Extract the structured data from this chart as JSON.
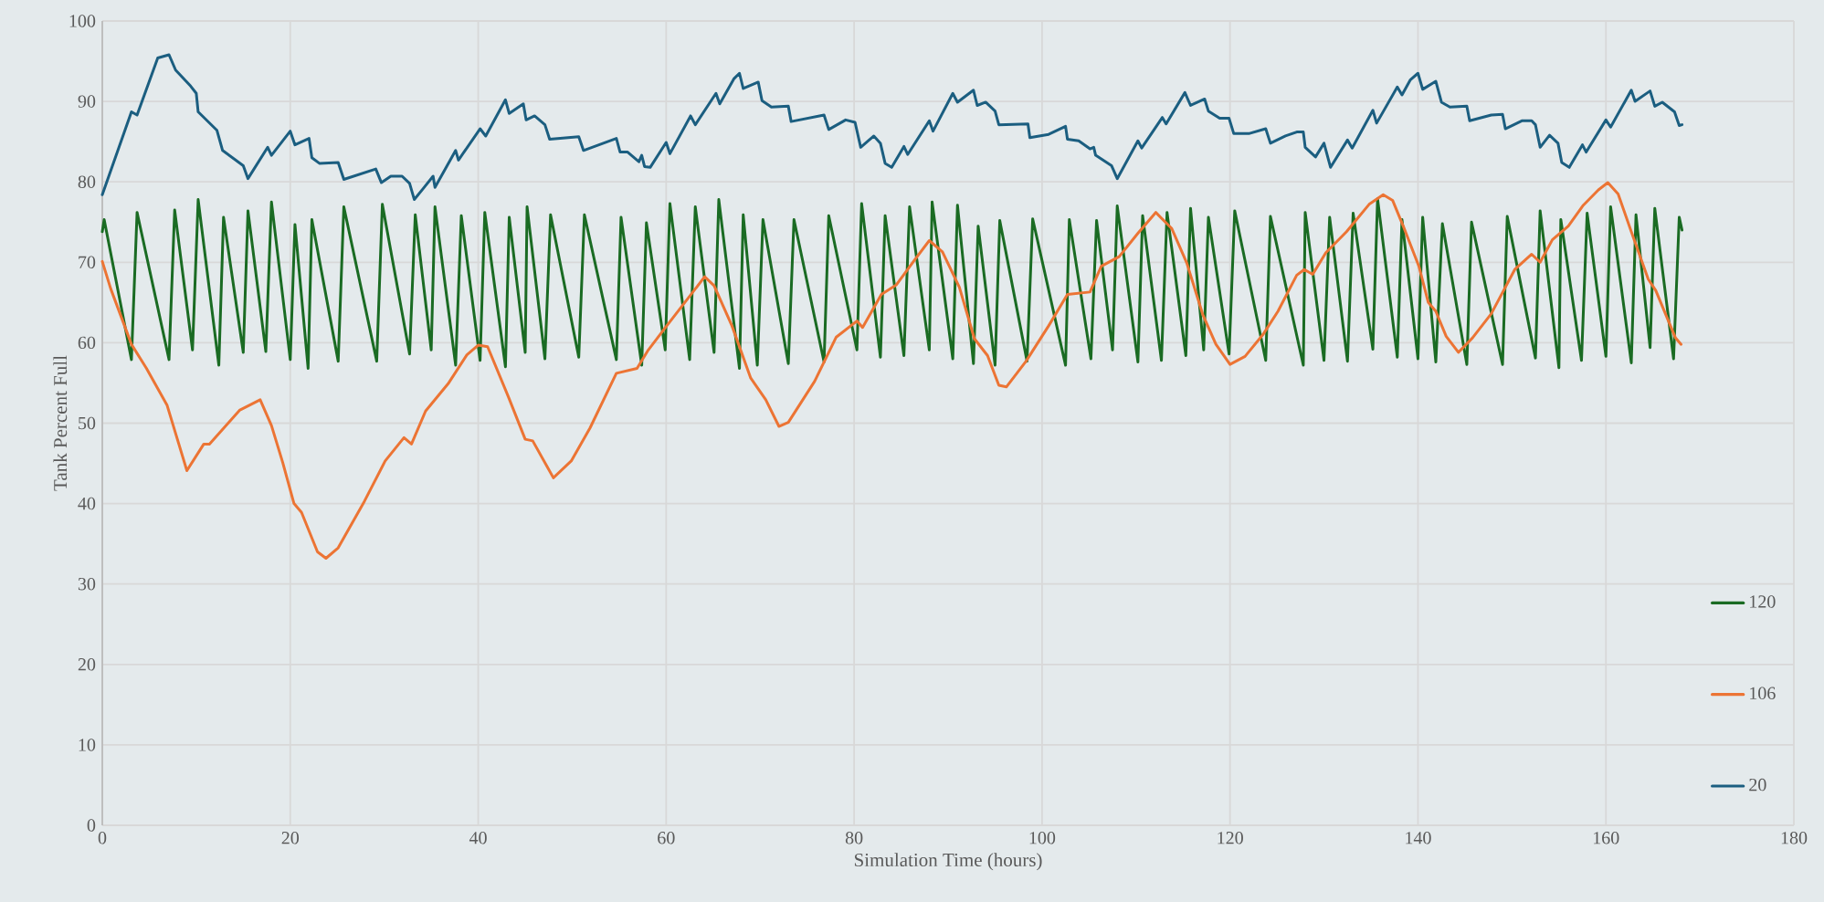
{
  "chart_data": {
    "type": "line",
    "xlabel": "Simulation Time (hours)",
    "ylabel": "Tank Percent Full",
    "xlim": [
      0,
      180
    ],
    "ylim": [
      0,
      100
    ],
    "xticks": [
      0,
      20,
      40,
      60,
      80,
      100,
      120,
      140,
      160,
      180
    ],
    "yticks": [
      0,
      10,
      20,
      30,
      40,
      50,
      60,
      70,
      80,
      90,
      100
    ],
    "grid": true,
    "legend": "bottom right",
    "line_style": "solid",
    "marker": "none",
    "series": [
      {
        "name": "120",
        "color": "#1a6b23",
        "x": [
          0,
          0.2,
          3.1,
          3.7,
          7.1,
          7.7,
          9.6,
          10.2,
          12.4,
          12.9,
          15.0,
          15.5,
          17.4,
          18.0,
          20.0,
          20.5,
          21.9,
          22.3,
          25.1,
          25.7,
          29.2,
          29.8,
          32.7,
          33.3,
          35.0,
          35.4,
          37.6,
          38.2,
          40.2,
          40.7,
          42.9,
          43.3,
          45.0,
          45.2,
          47.1,
          47.7,
          50.7,
          51.3,
          54.7,
          55.2,
          57.4,
          57.9,
          59.9,
          60.4,
          62.5,
          63.1,
          65.1,
          65.6,
          67.8,
          68.2,
          69.7,
          70.3,
          73.0,
          73.6,
          76.8,
          77.3,
          80.3,
          80.8,
          82.8,
          83.3,
          85.3,
          85.9,
          88.0,
          88.3,
          90.5,
          91.0,
          92.7,
          93.2,
          95.0,
          95.5,
          98.4,
          99.0,
          102.5,
          102.9,
          105.2,
          105.8,
          107.5,
          108.0,
          110.2,
          110.7,
          112.7,
          113.3,
          115.3,
          115.8,
          117.2,
          117.7,
          119.9,
          120.5,
          123.8,
          124.3,
          127.8,
          128.0,
          130.0,
          130.6,
          132.5,
          133.1,
          135.2,
          135.7,
          137.8,
          138.3,
          140.0,
          140.5,
          141.9,
          142.6,
          145.2,
          145.7,
          149.0,
          149.5,
          152.5,
          153.0,
          155.0,
          155.2,
          157.4,
          158.0,
          160.0,
          160.5,
          162.7,
          163.2,
          164.7,
          165.2,
          167.2,
          167.8,
          168.1
        ],
        "values": [
          73.8,
          75.3,
          57.9,
          76.2,
          57.9,
          76.5,
          59.1,
          77.8,
          57.2,
          75.6,
          58.8,
          76.4,
          58.9,
          77.5,
          57.9,
          74.7,
          56.8,
          75.3,
          57.7,
          76.9,
          57.7,
          77.2,
          58.6,
          75.9,
          59.1,
          76.9,
          57.2,
          75.8,
          57.8,
          76.2,
          57.0,
          75.6,
          58.8,
          76.9,
          58.0,
          75.9,
          58.2,
          75.9,
          57.9,
          75.6,
          57.2,
          74.9,
          59.1,
          77.3,
          57.9,
          76.9,
          58.8,
          77.8,
          56.8,
          75.9,
          57.2,
          75.3,
          57.4,
          75.3,
          57.6,
          75.8,
          59.1,
          77.3,
          58.2,
          75.8,
          58.4,
          76.9,
          59.1,
          77.5,
          58.0,
          77.1,
          57.4,
          74.5,
          57.2,
          75.2,
          57.7,
          75.4,
          57.2,
          75.3,
          58.0,
          75.2,
          59.1,
          77.0,
          57.6,
          75.8,
          57.8,
          76.2,
          58.4,
          76.7,
          59.1,
          75.6,
          58.6,
          76.4,
          57.8,
          75.7,
          57.2,
          76.2,
          57.8,
          75.6,
          57.7,
          76.1,
          59.2,
          77.9,
          58.2,
          75.3,
          58.0,
          75.6,
          57.6,
          74.8,
          57.3,
          75.0,
          57.3,
          75.7,
          58.1,
          76.4,
          56.9,
          75.3,
          57.8,
          76.1,
          58.3,
          76.9,
          57.5,
          75.9,
          59.4,
          76.7,
          58.0,
          75.6,
          74.0
        ]
      },
      {
        "name": "106",
        "color": "#ec7434",
        "x": [
          0,
          0.9,
          3.1,
          4.7,
          6.9,
          9.0,
          10.8,
          11.4,
          14.6,
          16.8,
          18.0,
          19.2,
          20.4,
          21.2,
          22.9,
          23.8,
          25.1,
          27.9,
          30.1,
          32.1,
          32.9,
          34.4,
          36.8,
          38.8,
          40.0,
          41.0,
          43.2,
          45.0,
          45.8,
          48.0,
          49.9,
          51.9,
          54.7,
          56.9,
          58.1,
          59.8,
          64.1,
          65.1,
          67.0,
          69.0,
          70.6,
          72.0,
          73.0,
          75.8,
          78.1,
          80.3,
          80.9,
          82.9,
          84.5,
          86.5,
          88.0,
          89.4,
          91.2,
          92.8,
          94.2,
          95.4,
          96.2,
          98.3,
          100.7,
          102.7,
          105.1,
          106.3,
          108.2,
          110.2,
          112.1,
          113.8,
          115.4,
          117.1,
          118.5,
          120.0,
          121.6,
          123.5,
          125.1,
          127.1,
          127.9,
          128.8,
          130.2,
          132.4,
          134.8,
          136.3,
          137.3,
          138.5,
          140.1,
          141.1,
          141.9,
          143.0,
          144.3,
          145.8,
          147.8,
          150.3,
          152.1,
          153.0,
          154.3,
          156.0,
          157.6,
          159.2,
          160.2,
          161.3,
          162.7,
          164.5,
          165.3,
          167.4,
          168.0
        ],
        "values": [
          70.1,
          66.7,
          59.8,
          56.8,
          52.2,
          44.1,
          47.4,
          47.4,
          51.6,
          52.9,
          49.7,
          45.1,
          40.0,
          38.9,
          34.0,
          33.2,
          34.5,
          40.3,
          45.3,
          48.2,
          47.4,
          51.5,
          54.9,
          58.5,
          59.7,
          59.5,
          53.3,
          48.0,
          47.8,
          43.2,
          45.3,
          49.4,
          56.2,
          56.8,
          59.1,
          61.7,
          68.2,
          67.1,
          62.1,
          55.6,
          52.9,
          49.6,
          50.1,
          55.2,
          60.7,
          62.7,
          61.9,
          66.0,
          67.2,
          70.4,
          72.7,
          71.3,
          66.9,
          60.5,
          58.4,
          54.7,
          54.5,
          57.7,
          62.1,
          66.0,
          66.3,
          69.5,
          70.7,
          73.6,
          76.2,
          74.2,
          69.9,
          63.5,
          59.8,
          57.3,
          58.3,
          61.0,
          63.9,
          68.4,
          69.1,
          68.5,
          71.2,
          73.8,
          77.2,
          78.4,
          77.7,
          74.3,
          69.5,
          65.0,
          63.9,
          60.8,
          58.8,
          60.6,
          63.6,
          69.1,
          71.0,
          70.0,
          72.8,
          74.5,
          77.1,
          79.0,
          79.9,
          78.5,
          73.8,
          67.9,
          66.5,
          60.6,
          59.8
        ]
      },
      {
        "name": "20",
        "color": "#1b5e80",
        "x": [
          0,
          3.1,
          3.7,
          5.9,
          7.1,
          7.8,
          9.4,
          10.0,
          10.2,
          12.2,
          12.8,
          15.0,
          15.5,
          17.6,
          18.0,
          20.0,
          20.5,
          22.0,
          22.3,
          23.1,
          25.1,
          25.7,
          29.1,
          29.7,
          30.7,
          31.9,
          32.7,
          33.2,
          34.1,
          35.2,
          35.4,
          37.6,
          37.9,
          40.2,
          40.8,
          42.9,
          43.3,
          44.8,
          45.1,
          46.0,
          47.1,
          47.6,
          50.7,
          51.2,
          54.7,
          55.1,
          55.9,
          57.1,
          57.4,
          57.7,
          58.3,
          60.0,
          60.4,
          62.6,
          63.1,
          65.3,
          65.7,
          67.2,
          67.8,
          68.2,
          69.8,
          70.2,
          71.2,
          73.0,
          73.3,
          76.8,
          77.3,
          79.1,
          80.1,
          80.7,
          82.1,
          82.8,
          83.3,
          84.0,
          85.3,
          85.7,
          88.0,
          88.4,
          90.5,
          91.0,
          92.7,
          93.1,
          94.0,
          95.0,
          95.4,
          98.5,
          98.7,
          100.7,
          102.5,
          102.7,
          103.9,
          105.1,
          105.5,
          105.7,
          107.4,
          108.0,
          110.2,
          110.6,
          112.8,
          113.2,
          115.2,
          115.8,
          117.3,
          117.7,
          118.9,
          119.9,
          120.4,
          122.0,
          123.8,
          124.3,
          125.9,
          127.1,
          127.8,
          128.0,
          129.1,
          130.0,
          130.7,
          132.5,
          133.0,
          135.2,
          135.6,
          137.8,
          138.3,
          139.2,
          140.0,
          140.5,
          141.9,
          142.5,
          143.4,
          145.2,
          145.5,
          147.8,
          149.0,
          149.3,
          151.1,
          152.1,
          152.5,
          153.0,
          154.0,
          154.9,
          155.3,
          156.1,
          157.5,
          157.9,
          160.0,
          160.5,
          162.7,
          163.1,
          164.7,
          165.2,
          166.0,
          167.3,
          167.8,
          168.1
        ],
        "values": [
          78.4,
          88.7,
          88.3,
          95.4,
          95.8,
          93.9,
          91.9,
          91.0,
          88.7,
          86.4,
          83.9,
          82.0,
          80.4,
          84.3,
          83.3,
          86.3,
          84.6,
          85.4,
          83.0,
          82.3,
          82.4,
          80.3,
          81.6,
          79.9,
          80.7,
          80.7,
          79.8,
          77.8,
          79.1,
          80.7,
          79.3,
          83.9,
          82.7,
          86.6,
          85.7,
          90.2,
          88.5,
          89.7,
          87.7,
          88.2,
          87.1,
          85.3,
          85.6,
          83.9,
          85.4,
          83.7,
          83.7,
          82.5,
          83.3,
          81.9,
          81.8,
          84.9,
          83.5,
          88.2,
          87.1,
          91.0,
          89.7,
          92.8,
          93.5,
          91.6,
          92.4,
          90.1,
          89.3,
          89.4,
          87.5,
          88.3,
          86.5,
          87.7,
          87.4,
          84.3,
          85.7,
          84.8,
          82.3,
          81.8,
          84.4,
          83.4,
          87.6,
          86.3,
          91.0,
          89.9,
          91.4,
          89.5,
          89.9,
          88.8,
          87.1,
          87.2,
          85.5,
          85.9,
          86.9,
          85.3,
          85.1,
          84.1,
          84.3,
          83.3,
          82.0,
          80.4,
          85.1,
          84.2,
          88.0,
          87.2,
          91.1,
          89.5,
          90.3,
          88.8,
          87.9,
          87.9,
          86.0,
          86.0,
          86.6,
          84.8,
          85.7,
          86.2,
          86.2,
          84.3,
          83.1,
          84.8,
          81.8,
          85.2,
          84.2,
          88.9,
          87.3,
          91.8,
          90.8,
          92.7,
          93.5,
          91.5,
          92.5,
          89.9,
          89.3,
          89.4,
          87.6,
          88.3,
          88.4,
          86.6,
          87.6,
          87.6,
          87.1,
          84.3,
          85.8,
          84.8,
          82.4,
          81.8,
          84.6,
          83.7,
          87.7,
          86.8,
          91.4,
          90.0,
          91.3,
          89.4,
          89.9,
          88.7,
          87.0,
          87.1
        ]
      }
    ]
  }
}
